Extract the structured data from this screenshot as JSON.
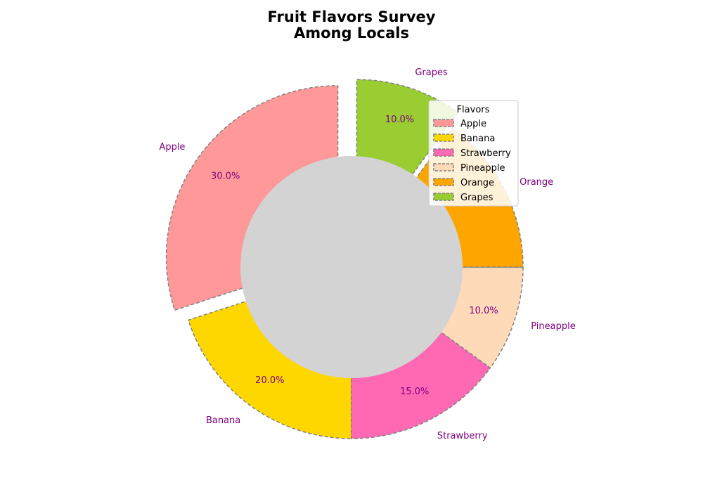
{
  "chart_data": {
    "type": "pie",
    "variant": "donut",
    "title_lines": [
      "Fruit Flavors Survey",
      "Among Locals"
    ],
    "categories": [
      "Apple",
      "Banana",
      "Strawberry",
      "Pineapple",
      "Orange",
      "Grapes"
    ],
    "values": [
      30,
      20,
      15,
      10,
      15,
      10
    ],
    "percent_labels": [
      "30.0%",
      "20.0%",
      "15.0%",
      "10.0%",
      "",
      "10.0%"
    ],
    "colors": [
      "#ff9999",
      "#ffd700",
      "#ff69b4",
      "#ffdab9",
      "#ffa500",
      "#9acd32"
    ],
    "exploded": [
      "Apple",
      "Grapes"
    ],
    "center_color": "#d3d3d3",
    "edge_style": "dashed",
    "edge_color": "#808080",
    "label_color": "#800080",
    "start_angle_deg": 90,
    "direction": "counterclockwise",
    "legend": {
      "title": "Flavors",
      "placement": "upper-right",
      "entries": [
        "Apple",
        "Banana",
        "Strawberry",
        "Pineapple",
        "Orange",
        "Grapes"
      ]
    }
  }
}
